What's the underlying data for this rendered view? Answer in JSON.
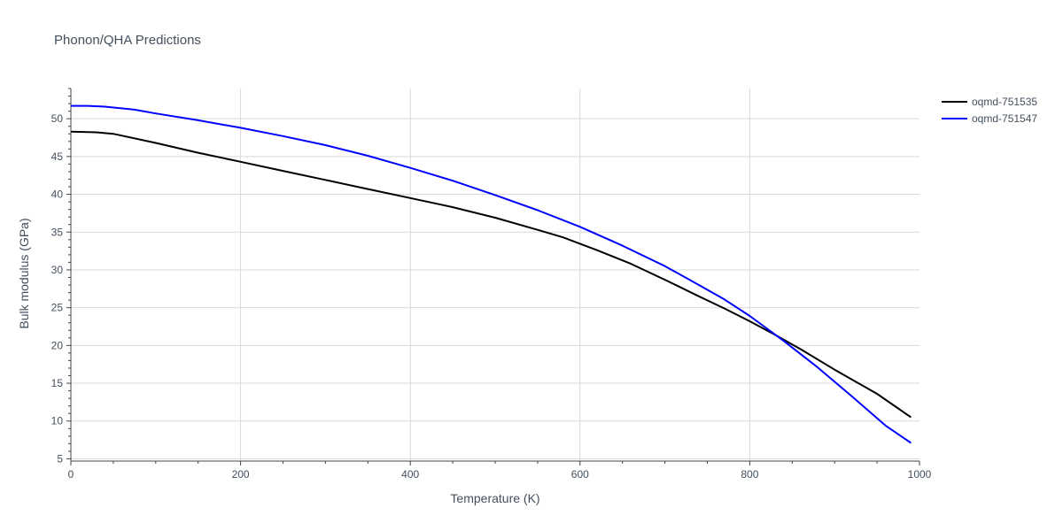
{
  "chart_data": {
    "type": "line",
    "title": "Phonon/QHA Predictions",
    "xlabel": "Temperature (K)",
    "ylabel": "Bulk modulus (GPa)",
    "xlim": [
      0,
      1000
    ],
    "ylim": [
      4.7,
      54
    ],
    "x_ticks": [
      0,
      200,
      400,
      600,
      800,
      1000
    ],
    "y_ticks": [
      5,
      10,
      15,
      20,
      25,
      30,
      35,
      40,
      45,
      50
    ],
    "x_tick_labels": [
      "0",
      "200",
      "400",
      "600",
      "800",
      "1000"
    ],
    "y_tick_labels": [
      "5",
      "10",
      "15",
      "20",
      "25",
      "30",
      "35",
      "40",
      "45",
      "50"
    ],
    "grid": true,
    "legend_position": "top-right",
    "series": [
      {
        "name": "oqmd-751535",
        "color": "#000000",
        "x": [
          0,
          30,
          50,
          100,
          150,
          200,
          250,
          300,
          350,
          400,
          450,
          500,
          550,
          580,
          620,
          660,
          700,
          740,
          770,
          800,
          830,
          860,
          900,
          950,
          990
        ],
        "y": [
          48.3,
          48.2,
          48.0,
          46.8,
          45.5,
          44.3,
          43.1,
          41.9,
          40.7,
          39.5,
          38.3,
          36.9,
          35.3,
          34.3,
          32.6,
          30.8,
          28.7,
          26.5,
          24.9,
          23.2,
          21.4,
          19.5,
          16.8,
          13.6,
          10.5
        ]
      },
      {
        "name": "oqmd-751547",
        "color": "#0000ff",
        "x": [
          0,
          20,
          40,
          75,
          100,
          150,
          200,
          250,
          300,
          350,
          400,
          450,
          500,
          550,
          600,
          650,
          700,
          740,
          770,
          800,
          840,
          880,
          920,
          960,
          990
        ],
        "y": [
          51.7,
          51.7,
          51.6,
          51.2,
          50.7,
          49.8,
          48.8,
          47.7,
          46.5,
          45.1,
          43.5,
          41.8,
          39.9,
          37.9,
          35.7,
          33.2,
          30.5,
          28.0,
          26.1,
          23.9,
          20.6,
          17.1,
          13.3,
          9.4,
          7.1
        ]
      }
    ]
  }
}
